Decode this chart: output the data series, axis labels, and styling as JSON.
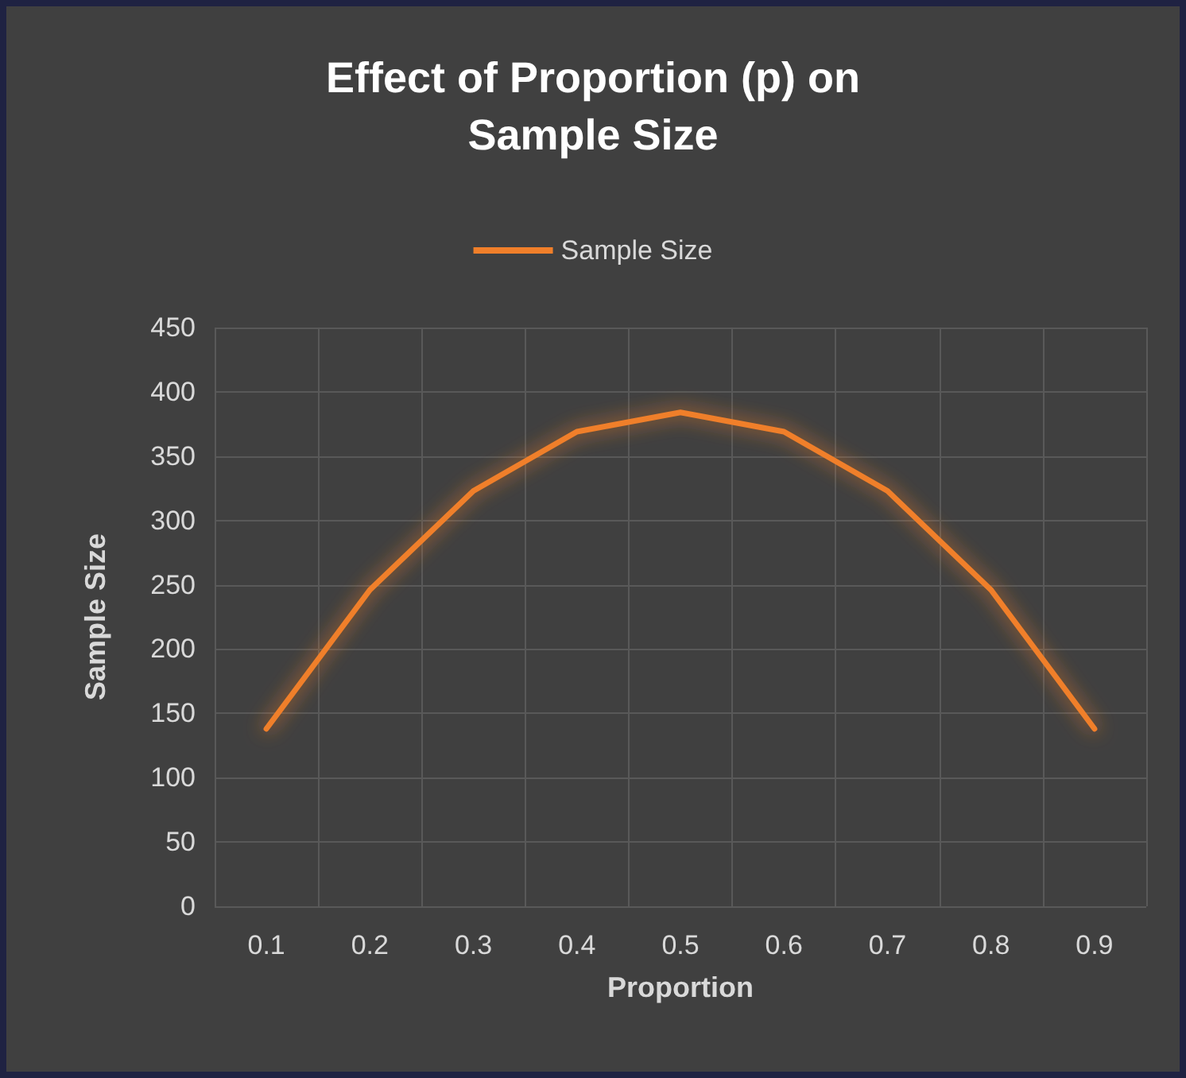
{
  "chart_data": {
    "type": "line",
    "title": "Effect of Proportion (p) on\nSample Size",
    "xlabel": "Proportion",
    "ylabel": "Sample Size",
    "categories": [
      "0.1",
      "0.2",
      "0.3",
      "0.4",
      "0.5",
      "0.6",
      "0.7",
      "0.8",
      "0.9"
    ],
    "series": [
      {
        "name": "Sample Size",
        "color": "#f07f2a",
        "values": [
          138,
          246,
          323,
          369,
          384,
          369,
          323,
          246,
          138
        ]
      }
    ],
    "ylim": [
      0,
      450
    ],
    "yticks": [
      0,
      50,
      100,
      150,
      200,
      250,
      300,
      350,
      400,
      450
    ],
    "grid": true,
    "legend": "top",
    "marker": "none",
    "line_style": "solid"
  }
}
